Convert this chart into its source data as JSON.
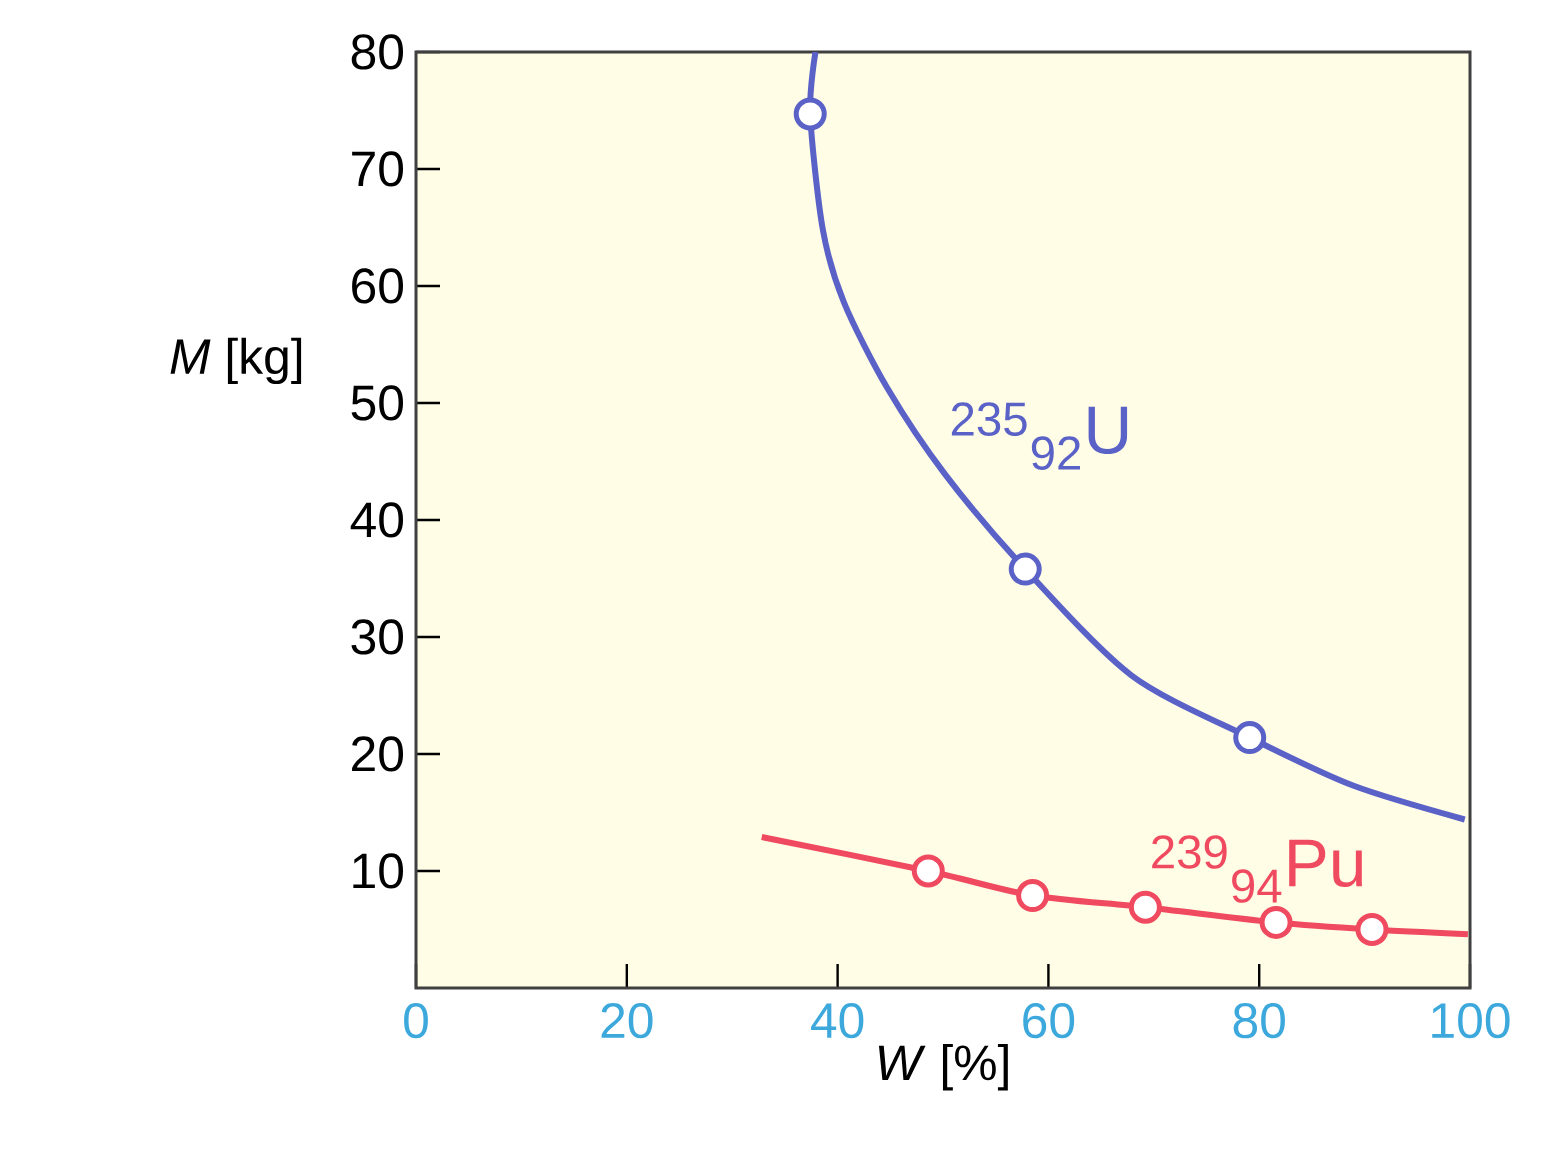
{
  "chart_data": {
    "type": "line",
    "xlabel": "*W* [%]",
    "ylabel": "*M* [kg]",
    "xlim": [
      0,
      100
    ],
    "ylim": [
      0,
      80
    ],
    "xticks": [
      0,
      20,
      40,
      60,
      80,
      100
    ],
    "yticks": [
      10,
      20,
      30,
      40,
      50,
      60,
      70,
      80
    ],
    "series": [
      {
        "name": "$^{235}$$_{92}$U",
        "color": "#5a62c8",
        "marker": "none",
        "x": [
          37.9,
          37.4,
          38.6,
          40.6,
          44.7,
          50.2,
          57.8,
          67.9,
          79.1,
          88.9,
          99.5
        ],
        "values": [
          80,
          74.7,
          64.8,
          58.6,
          51.3,
          43.9,
          35.8,
          26.7,
          21.4,
          17.3,
          14.4
        ]
      },
      {
        "type": "scatter",
        "color": "#5a62c8",
        "marker": "circle",
        "x": [
          37.4,
          57.8,
          79.1
        ],
        "values": [
          74.7,
          35.8,
          21.4
        ]
      },
      {
        "name": "$^{239}$$_{94}$Pu",
        "color": "#f04a60",
        "marker": "none",
        "x": [
          32.8,
          48.6,
          58.5,
          69.2,
          81.6,
          90.7,
          99.8
        ],
        "values": [
          12.9,
          10.0,
          7.9,
          6.9,
          5.6,
          5.0,
          4.6
        ]
      },
      {
        "type": "scatter",
        "color": "#f04a60",
        "marker": "circle",
        "x": [
          48.6,
          58.5,
          69.2,
          81.6,
          90.7
        ],
        "values": [
          10.0,
          7.9,
          6.9,
          5.6,
          5.0
        ]
      }
    ]
  }
}
